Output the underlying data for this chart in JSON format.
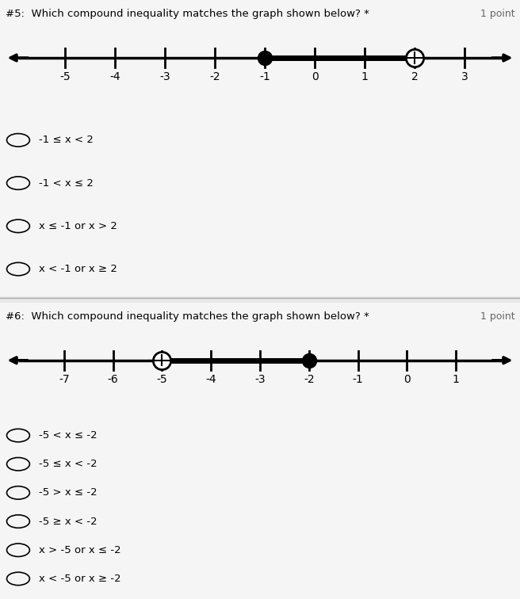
{
  "bg_color": "#e8e8e8",
  "panel_bg": "#f5f5f5",
  "q5": {
    "title": "#5:  Which compound inequality matches the graph shown below? *",
    "point_label": "1 point",
    "number_line": {
      "x_min": -6.2,
      "x_max": 4.0,
      "ticks": [
        -5,
        -4,
        -3,
        -2,
        -1,
        0,
        1,
        2,
        3
      ],
      "filled_dot": -1,
      "open_dot": 2,
      "shade_from": -1,
      "shade_to": 2
    },
    "options": [
      "-1 ≤ x < 2",
      "-1 < x ≤ 2",
      "x ≤ -1 or x > 2",
      "x < -1 or x ≥ 2"
    ]
  },
  "q6": {
    "title": "#6:  Which compound inequality matches the graph shown below? *",
    "point_label": "1 point",
    "number_line": {
      "x_min": -8.2,
      "x_max": 2.2,
      "ticks": [
        -7,
        -6,
        -5,
        -4,
        -3,
        -2,
        -1,
        0,
        1
      ],
      "filled_dot": -2,
      "open_dot": -5,
      "shade_from": -5,
      "shade_to": -2
    },
    "options": [
      "-5 < x ≤ -2",
      "-5 ≤ x < -2",
      "-5 > x ≤ -2",
      "-5 ≥ x < -2",
      "x > -5 or x ≤ -2",
      "x < -5 or x ≥ -2"
    ]
  }
}
